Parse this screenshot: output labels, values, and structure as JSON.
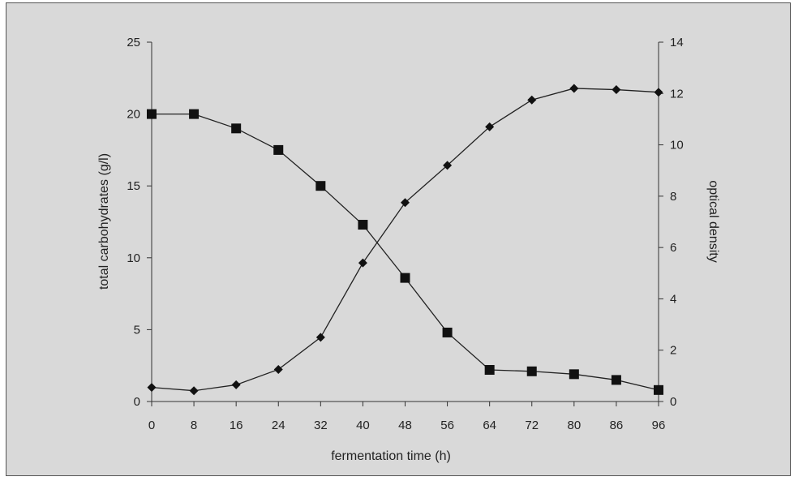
{
  "chart_data": {
    "type": "line",
    "x_label": "fermentation time (h)",
    "y_left_label": "total carbohydrates (g/l)",
    "y_right_label": "optical density",
    "x_categories": [
      "0",
      "8",
      "16",
      "24",
      "32",
      "40",
      "48",
      "56",
      "64",
      "72",
      "80",
      "86",
      "96"
    ],
    "y_left_range": [
      0,
      25
    ],
    "y_left_ticks": [
      0,
      5,
      10,
      15,
      20,
      25
    ],
    "y_right_range": [
      0,
      14
    ],
    "y_right_ticks": [
      0,
      2,
      4,
      6,
      8,
      10,
      12,
      14
    ],
    "grid": false,
    "series": [
      {
        "axis": "left",
        "marker": "square",
        "values": [
          20,
          20,
          19,
          17.5,
          15,
          12.3,
          8.6,
          4.8,
          2.2,
          2.1,
          1.9,
          1.5,
          0.8
        ]
      },
      {
        "axis": "right",
        "marker": "diamond",
        "values": [
          0.55,
          0.42,
          0.65,
          1.25,
          2.5,
          5.4,
          7.75,
          9.2,
          10.7,
          11.75,
          12.2,
          12.15,
          12.05
        ]
      }
    ]
  }
}
